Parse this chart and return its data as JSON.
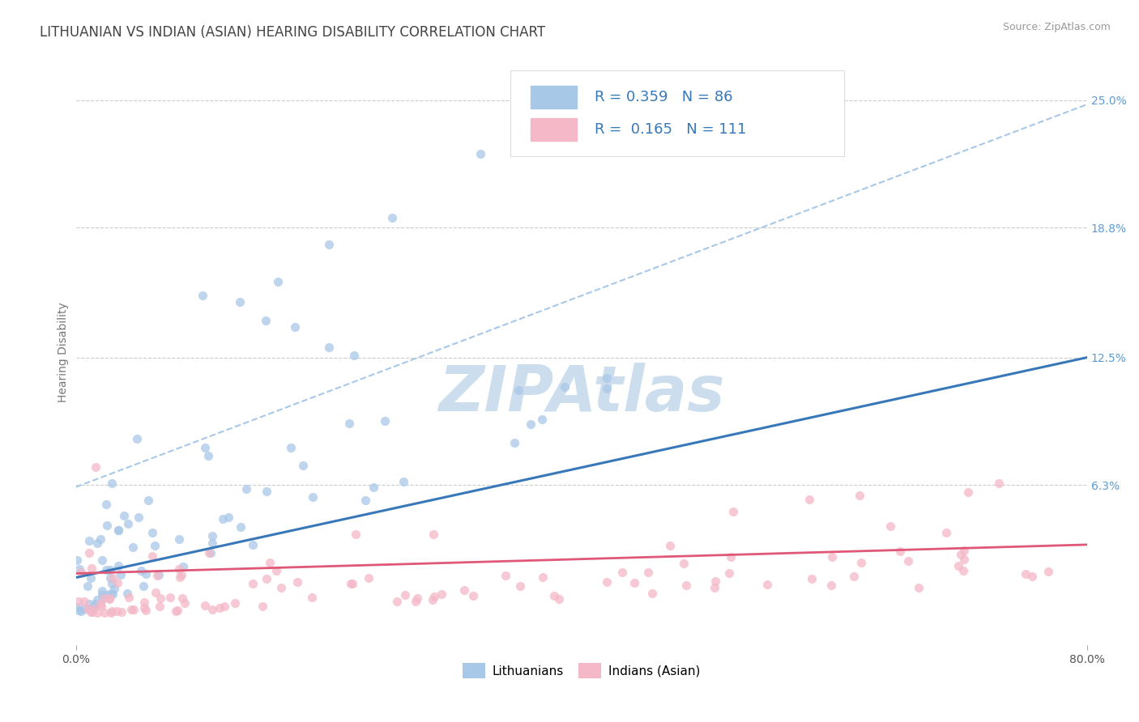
{
  "title": "LITHUANIAN VS INDIAN (ASIAN) HEARING DISABILITY CORRELATION CHART",
  "source": "Source: ZipAtlas.com",
  "ylabel": "Hearing Disability",
  "yaxis_labels": [
    "6.3%",
    "12.5%",
    "18.8%",
    "25.0%"
  ],
  "yaxis_values": [
    0.063,
    0.125,
    0.188,
    0.25
  ],
  "xmin": 0.0,
  "xmax": 0.8,
  "ymin": -0.015,
  "ymax": 0.27,
  "legend_blue_R": "0.359",
  "legend_blue_N": "86",
  "legend_pink_R": "0.165",
  "legend_pink_N": "111",
  "blue_scatter_color": "#a8c8e8",
  "pink_scatter_color": "#f4b8c8",
  "blue_line_color": "#3878b8",
  "pink_line_color": "#e05878",
  "dashed_line_color": "#a8c8e8",
  "watermark_color": "#ccdded",
  "background_color": "#ffffff",
  "grid_color": "#cccccc",
  "title_color": "#444444",
  "ytick_color": "#5b9bd5",
  "title_fontsize": 12,
  "axis_label_fontsize": 10,
  "tick_fontsize": 10,
  "legend_fontsize": 13,
  "source_fontsize": 9,
  "blue_trend_x": [
    0.0,
    0.8
  ],
  "blue_trend_y": [
    0.018,
    0.125
  ],
  "pink_trend_x": [
    0.0,
    0.8
  ],
  "pink_trend_y": [
    0.02,
    0.034
  ],
  "dashed_trend_x": [
    0.0,
    0.8
  ],
  "dashed_trend_y": [
    0.062,
    0.248
  ]
}
